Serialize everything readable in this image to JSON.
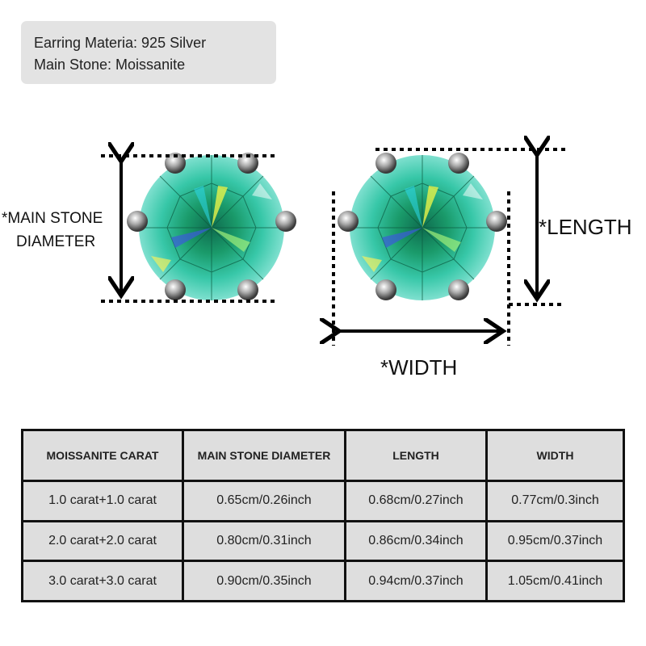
{
  "specs": {
    "material": "Earring Materia: 925 Silver",
    "stone": "Main Stone: Moissanite"
  },
  "diagram": {
    "diameter_label_line1": "*MAIN STONE",
    "diameter_label_line2": "DIAMETER",
    "length_label": "*LENGTH",
    "width_label": "*WIDTH",
    "stone_color": "#1fa38a"
  },
  "table": {
    "headers": [
      "MOISSANITE CARAT",
      "MAIN STONE DIAMETER",
      "LENGTH",
      "WIDTH"
    ],
    "rows": [
      [
        "1.0 carat+1.0 carat",
        "0.65cm/0.26inch",
        "0.68cm/0.27inch",
        "0.77cm/0.3inch"
      ],
      [
        "2.0 carat+2.0 carat",
        "0.80cm/0.31inch",
        "0.86cm/0.34inch",
        "0.95cm/0.37inch"
      ],
      [
        "3.0 carat+3.0 carat",
        "0.90cm/0.35inch",
        "0.94cm/0.37inch",
        "1.05cm/0.41inch"
      ]
    ]
  }
}
